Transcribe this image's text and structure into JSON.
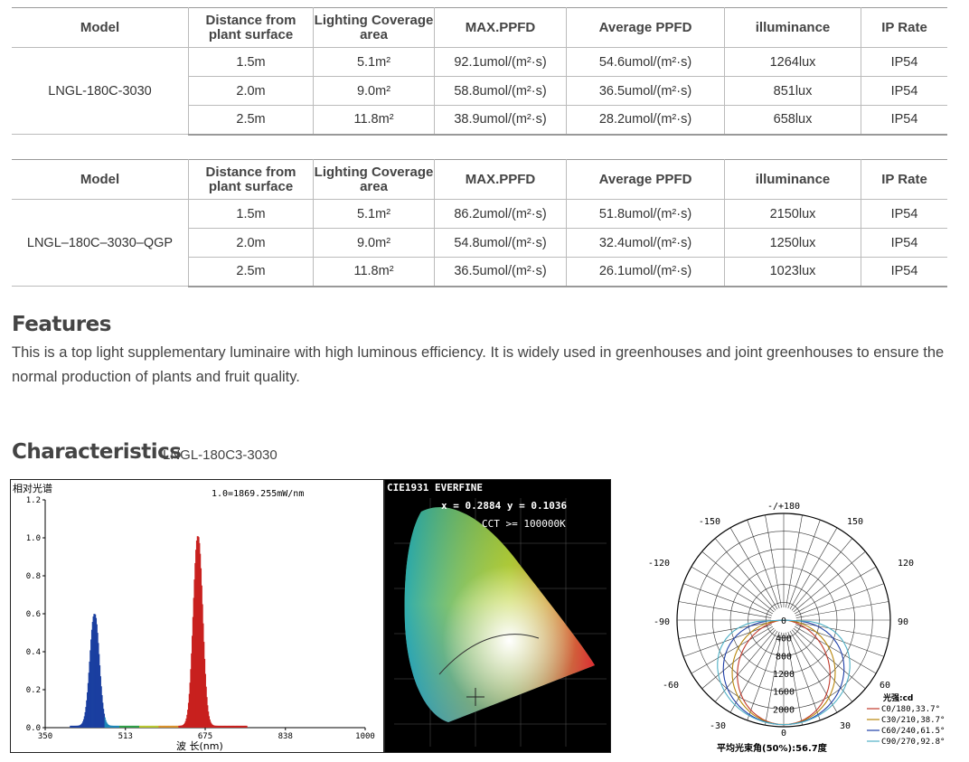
{
  "tables": [
    {
      "headers": [
        "Model",
        "Distance from plant surface",
        "Lighting Coverage area",
        "MAX.PPFD",
        "Average PPFD",
        "illuminance",
        "IP Rate"
      ],
      "model": "LNGL-180C-3030",
      "rows": [
        {
          "distance": "1.5m",
          "area": "5.1m²",
          "max_ppfd": "92.1umol/(m²·s)",
          "avg_ppfd": "54.6umol/(m²·s)",
          "illuminance": "1264lux",
          "ip": "IP54"
        },
        {
          "distance": "2.0m",
          "area": "9.0m²",
          "max_ppfd": "58.8umol/(m²·s)",
          "avg_ppfd": "36.5umol/(m²·s)",
          "illuminance": "851lux",
          "ip": "IP54"
        },
        {
          "distance": "2.5m",
          "area": "11.8m²",
          "max_ppfd": "38.9umol/(m²·s)",
          "avg_ppfd": "28.2umol/(m²·s)",
          "illuminance": "658lux",
          "ip": "IP54"
        }
      ]
    },
    {
      "headers": [
        "Model",
        "Distance from plant surface",
        "Lighting Coverage area",
        "MAX.PPFD",
        "Average PPFD",
        "illuminance",
        "IP Rate"
      ],
      "model": "LNGL–180C–3030–QGP",
      "rows": [
        {
          "distance": "1.5m",
          "area": "5.1m²",
          "max_ppfd": "86.2umol/(m²·s)",
          "avg_ppfd": "51.8umol/(m²·s)",
          "illuminance": "2150lux",
          "ip": "IP54"
        },
        {
          "distance": "2.0m",
          "area": "9.0m²",
          "max_ppfd": "54.8umol/(m²·s)",
          "avg_ppfd": "32.4umol/(m²·s)",
          "illuminance": "1250lux",
          "ip": "IP54"
        },
        {
          "distance": "2.5m",
          "area": "11.8m²",
          "max_ppfd": "36.5umol/(m²·s)",
          "avg_ppfd": "26.1umol/(m²·s)",
          "illuminance": "1023lux",
          "ip": "IP54"
        }
      ]
    }
  ],
  "features": {
    "heading": "Features",
    "text": "This is a top light supplementary luminaire with high luminous efficiency. It is widely used in greenhouses and joint greenhouses to ensure the normal production of plants and fruit quality."
  },
  "characteristics": {
    "heading": "Characteristics",
    "model": "LNGL-180C3-3030"
  },
  "spectrum": {
    "ylabel": "相对光谱",
    "scale_note": "1.0=1869.255mW/nm",
    "xlabel": "波 长(nm)",
    "x_ticks": [
      "350",
      "513",
      "675",
      "838",
      "1000"
    ],
    "y_ticks": [
      "0.0",
      "0.2",
      "0.4",
      "0.6",
      "0.8",
      "1.0",
      "1.2"
    ],
    "xlim": [
      350,
      1000
    ],
    "ylim": [
      0,
      1.2
    ],
    "peaks": [
      {
        "center": 450,
        "height": 0.59,
        "width": 9
      },
      {
        "center": 660,
        "height": 1.0,
        "width": 9
      }
    ]
  },
  "cie": {
    "title": "CIE1931 EVERFINE",
    "coords": "x = 0.2884 y = 0.1036",
    "cct": "CCT >= 100000K"
  },
  "polar": {
    "angle_labels": [
      "-/+180",
      "150",
      "-150",
      "120",
      "-120",
      "90",
      "-90",
      "60",
      "-60",
      "30",
      "-30",
      "0"
    ],
    "radial_labels": [
      "400",
      "800",
      "1200",
      "1600",
      "2000"
    ],
    "legend_title": "光强:cd",
    "legend": [
      {
        "label": "C0/180,33.7°",
        "color": "#c0392b"
      },
      {
        "label": "C30/210,38.7°",
        "color": "#b8860b"
      },
      {
        "label": "C60/240,61.5°",
        "color": "#1f3fa8"
      },
      {
        "label": "C90/270,92.8°",
        "color": "#4fb0c6"
      }
    ],
    "footer": "平均光束角(50%):56.7度"
  }
}
